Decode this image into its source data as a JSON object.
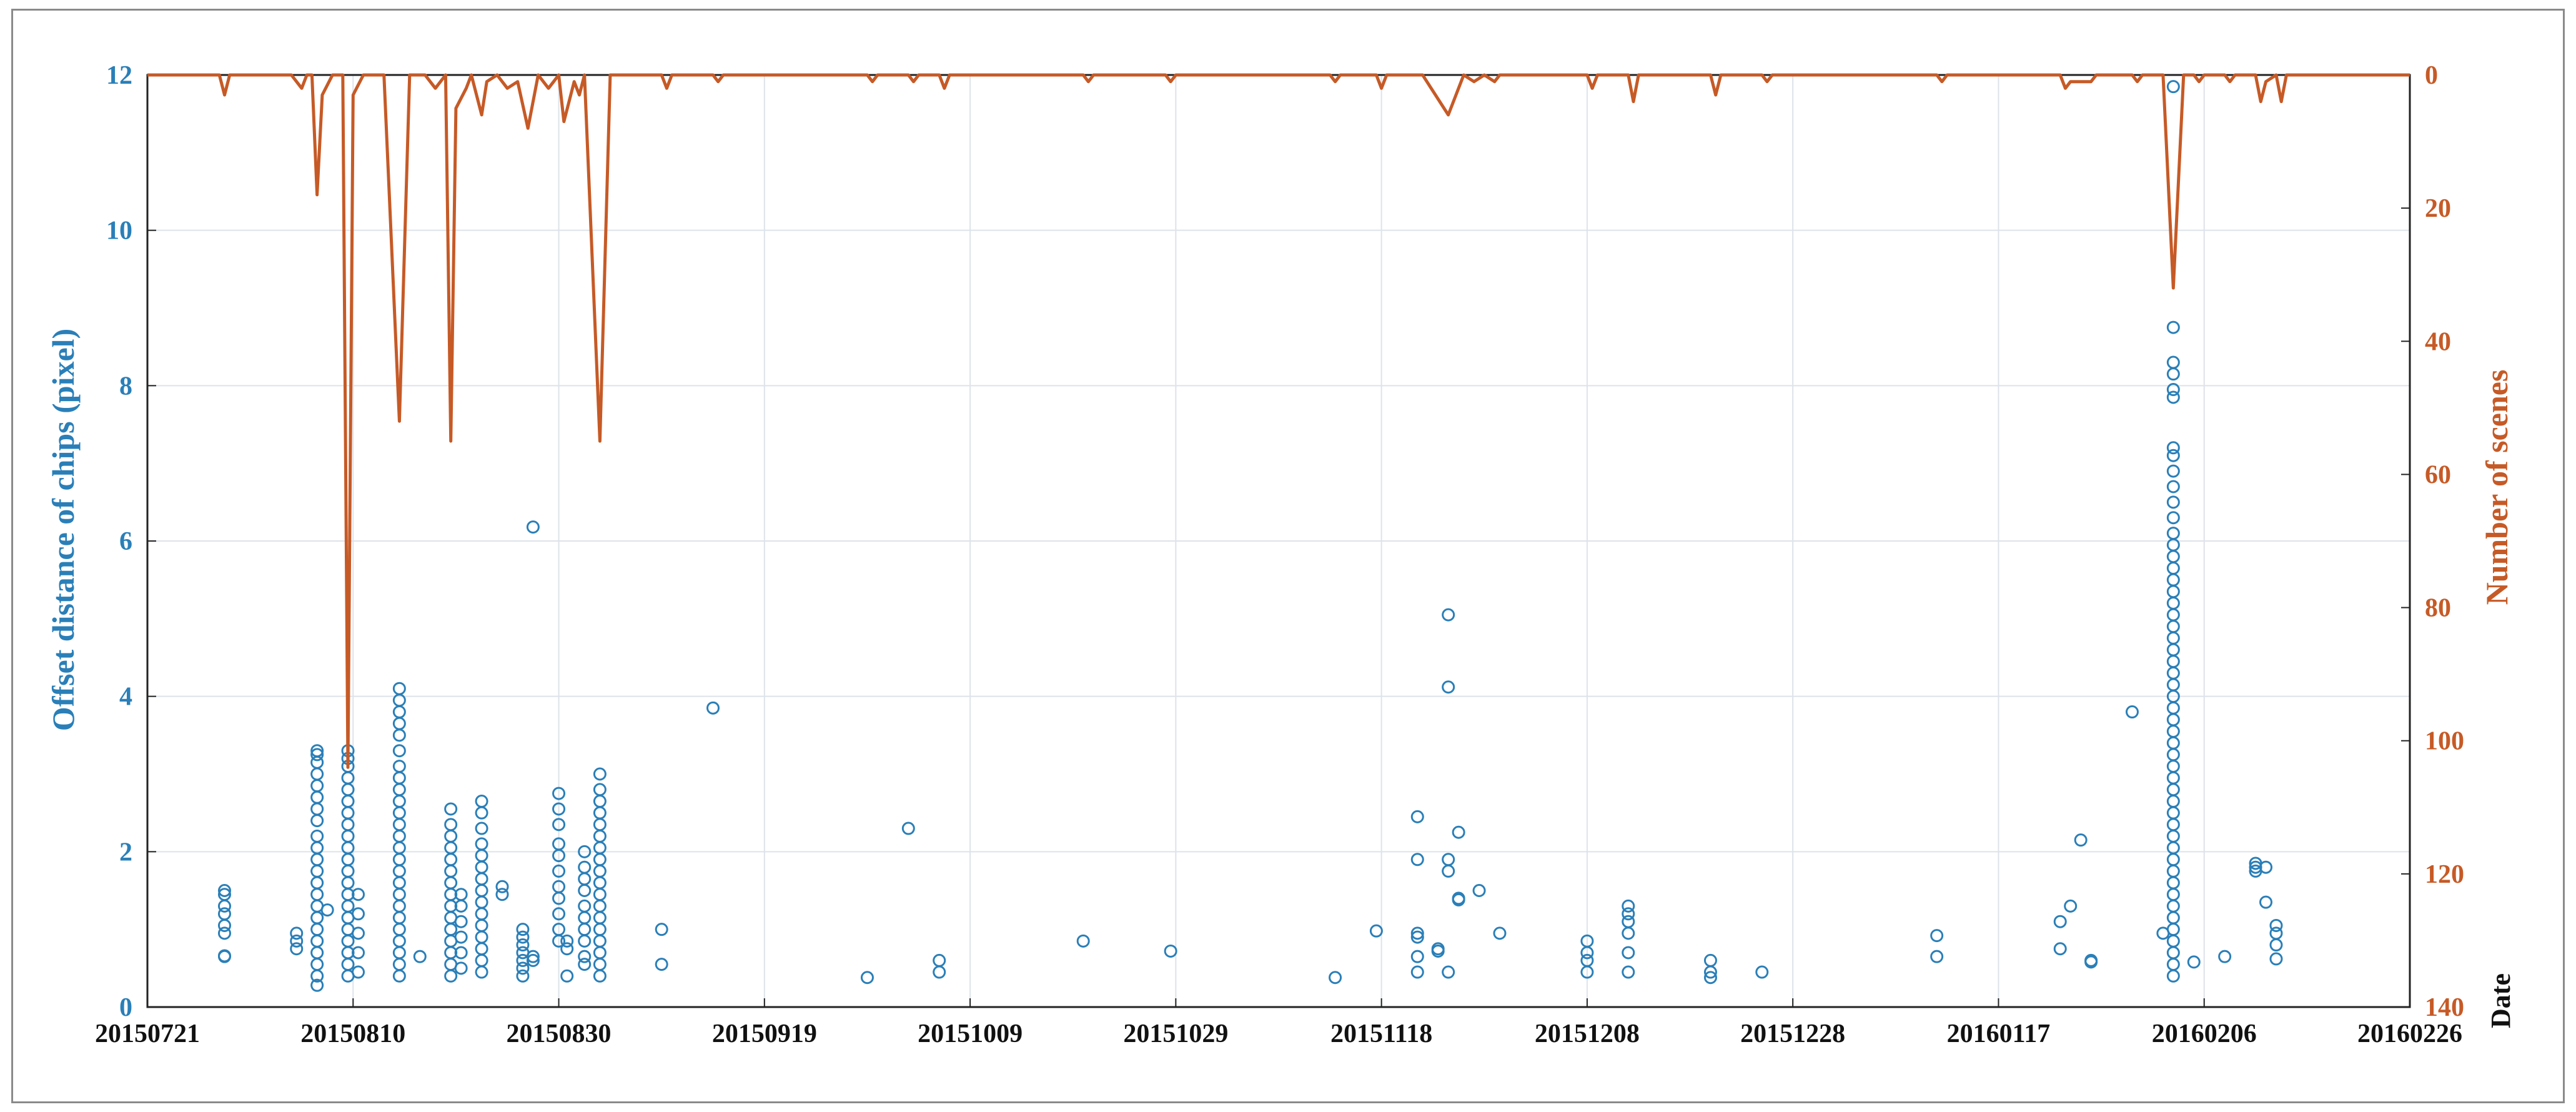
{
  "chart_data": {
    "type": "scatter",
    "title": "",
    "xlabel": "Date",
    "ylabel_left": "Offset distance of chips (pixel)",
    "ylabel_right": "Number of scenes",
    "x_ticks": [
      "20150721",
      "20150810",
      "20150830",
      "20150919",
      "20151009",
      "20151029",
      "20151118",
      "20151208",
      "20151228",
      "20160117",
      "20160206",
      "20160226"
    ],
    "x_range_days": [
      0,
      220
    ],
    "y_left_ticks": [
      "0",
      "2",
      "4",
      "6",
      "8",
      "10",
      "12"
    ],
    "y_left_range": [
      0,
      12
    ],
    "y_right_ticks": [
      "0",
      "20",
      "40",
      "60",
      "80",
      "100",
      "120",
      "140"
    ],
    "y_right_range": [
      0,
      140
    ],
    "y_right_reversed": true,
    "grid": true,
    "colors": {
      "scatter": "#2a7fb8",
      "line": "#c65a26",
      "grid": "#dde3ea",
      "axis": "#222222"
    },
    "series": [
      {
        "name": "Offset distance of chips",
        "kind": "scatter",
        "axis": "left",
        "clusters": [
          {
            "day": 7.5,
            "values": [
              0.65,
              0.66,
              0.95,
              1.05,
              1.2,
              1.3,
              1.45,
              1.5
            ]
          },
          {
            "day": 14.5,
            "values": [
              0.75,
              0.85,
              0.95
            ]
          },
          {
            "day": 16.5,
            "values": [
              0.28,
              0.4,
              0.55,
              0.7,
              0.85,
              1.0,
              1.15,
              1.3,
              1.45,
              1.6,
              1.75,
              1.9,
              2.05,
              2.2,
              2.4,
              2.55,
              2.7,
              2.85,
              3.0,
              3.15,
              3.25,
              3.3
            ]
          },
          {
            "day": 17.5,
            "values": [
              1.25
            ]
          },
          {
            "day": 19.5,
            "values": [
              0.4,
              0.55,
              0.7,
              0.85,
              1.0,
              1.15,
              1.3,
              1.45,
              1.6,
              1.75,
              1.9,
              2.05,
              2.2,
              2.35,
              2.5,
              2.65,
              2.8,
              2.95,
              3.1,
              3.2,
              3.3
            ]
          },
          {
            "day": 20.5,
            "values": [
              0.45,
              0.7,
              0.95,
              1.2,
              1.45
            ]
          },
          {
            "day": 24.5,
            "values": [
              0.4,
              0.55,
              0.7,
              0.85,
              1.0,
              1.15,
              1.3,
              1.45,
              1.6,
              1.75,
              1.9,
              2.05,
              2.2,
              2.35,
              2.5,
              2.65,
              2.8,
              2.95,
              3.1,
              3.3,
              3.5,
              3.65,
              3.8,
              3.95,
              4.1
            ]
          },
          {
            "day": 26.5,
            "values": [
              0.65
            ]
          },
          {
            "day": 29.5,
            "values": [
              0.4,
              0.55,
              0.7,
              0.85,
              1.0,
              1.15,
              1.3,
              1.45,
              1.6,
              1.75,
              1.9,
              2.05,
              2.2,
              2.35,
              2.55
            ]
          },
          {
            "day": 30.5,
            "values": [
              0.5,
              0.7,
              0.9,
              1.1,
              1.3,
              1.45
            ]
          },
          {
            "day": 32.5,
            "values": [
              0.45,
              0.6,
              0.75,
              0.9,
              1.05,
              1.2,
              1.35,
              1.5,
              1.65,
              1.8,
              1.95,
              2.1,
              2.3,
              2.5,
              2.65
            ]
          },
          {
            "day": 34.5,
            "values": [
              1.45,
              1.55
            ]
          },
          {
            "day": 36.5,
            "values": [
              0.4,
              0.5,
              0.6,
              0.7,
              0.8,
              0.9,
              1.0
            ]
          },
          {
            "day": 37.5,
            "values": [
              0.6,
              0.65,
              6.18
            ]
          },
          {
            "day": 40.0,
            "values": [
              0.85,
              1.0,
              1.2,
              1.4,
              1.55,
              1.75,
              1.95,
              2.1,
              2.35,
              2.55,
              2.75
            ]
          },
          {
            "day": 40.8,
            "values": [
              0.4,
              0.75,
              0.85
            ]
          },
          {
            "day": 42.5,
            "values": [
              0.55,
              0.65,
              0.85,
              1.0,
              1.15,
              1.3,
              1.5,
              1.65,
              1.8,
              2.0
            ]
          },
          {
            "day": 44.0,
            "values": [
              0.4,
              0.55,
              0.7,
              0.85,
              1.0,
              1.15,
              1.3,
              1.45,
              1.6,
              1.75,
              1.9,
              2.05,
              2.2,
              2.35,
              2.5,
              2.65,
              2.8,
              3.0
            ]
          },
          {
            "day": 50.0,
            "values": [
              0.55,
              1.0
            ]
          },
          {
            "day": 55.0,
            "values": [
              3.85
            ]
          },
          {
            "day": 70.0,
            "values": [
              0.38
            ]
          },
          {
            "day": 74.0,
            "values": [
              2.3
            ]
          },
          {
            "day": 77.0,
            "values": [
              0.45,
              0.6
            ]
          },
          {
            "day": 91.0,
            "values": [
              0.85
            ]
          },
          {
            "day": 99.5,
            "values": [
              0.72
            ]
          },
          {
            "day": 115.5,
            "values": [
              0.38
            ]
          },
          {
            "day": 119.5,
            "values": [
              0.98
            ]
          },
          {
            "day": 123.5,
            "values": [
              0.45,
              0.65,
              0.9,
              0.95,
              1.9,
              2.45
            ]
          },
          {
            "day": 125.5,
            "values": [
              0.72,
              0.75
            ]
          },
          {
            "day": 126.5,
            "values": [
              0.45,
              1.75,
              1.9,
              4.12,
              5.05
            ]
          },
          {
            "day": 127.5,
            "values": [
              1.38,
              1.4,
              2.25
            ]
          },
          {
            "day": 129.5,
            "values": [
              1.5
            ]
          },
          {
            "day": 131.5,
            "values": [
              0.95
            ]
          },
          {
            "day": 140.0,
            "values": [
              0.45,
              0.6,
              0.7,
              0.85
            ]
          },
          {
            "day": 144.0,
            "values": [
              0.45,
              0.7,
              0.95,
              1.1,
              1.2,
              1.3
            ]
          },
          {
            "day": 152.0,
            "values": [
              0.38,
              0.45,
              0.6
            ]
          },
          {
            "day": 157.0,
            "values": [
              0.45
            ]
          },
          {
            "day": 174.0,
            "values": [
              0.65,
              0.92
            ]
          },
          {
            "day": 186.0,
            "values": [
              0.75,
              1.1
            ]
          },
          {
            "day": 187.0,
            "values": [
              1.3
            ]
          },
          {
            "day": 188.0,
            "values": [
              2.15
            ]
          },
          {
            "day": 189.0,
            "values": [
              0.58,
              0.6
            ]
          },
          {
            "day": 193.0,
            "values": [
              3.8
            ]
          },
          {
            "day": 196.0,
            "values": [
              0.95
            ]
          },
          {
            "day": 197.0,
            "values": [
              0.4,
              0.55,
              0.7,
              0.85,
              1.0,
              1.15,
              1.3,
              1.45,
              1.6,
              1.75,
              1.9,
              2.05,
              2.2,
              2.35,
              2.5,
              2.65,
              2.8,
              2.95,
              3.1,
              3.25,
              3.4,
              3.55,
              3.7,
              3.85,
              4.0,
              4.15,
              4.3,
              4.45,
              4.6,
              4.75,
              4.9,
              5.05,
              5.2,
              5.35,
              5.5,
              5.65,
              5.8,
              5.95,
              6.1,
              6.3,
              6.5,
              6.7,
              6.9,
              7.1,
              7.2,
              7.85,
              7.95,
              8.15,
              8.3,
              8.75,
              11.85
            ]
          },
          {
            "day": 199.0,
            "values": [
              0.58
            ]
          },
          {
            "day": 202.0,
            "values": [
              0.65
            ]
          },
          {
            "day": 205.0,
            "values": [
              1.75,
              1.8,
              1.85
            ]
          },
          {
            "day": 206.0,
            "values": [
              1.35,
              1.8
            ]
          },
          {
            "day": 207.0,
            "values": [
              0.62,
              0.8,
              0.95,
              1.05
            ]
          }
        ]
      },
      {
        "name": "Number of scenes",
        "kind": "line",
        "axis": "right",
        "points": [
          [
            0,
            0
          ],
          [
            7,
            0
          ],
          [
            7.5,
            3
          ],
          [
            8,
            0
          ],
          [
            14,
            0
          ],
          [
            15,
            2
          ],
          [
            15.5,
            0
          ],
          [
            16,
            0
          ],
          [
            16.5,
            18
          ],
          [
            17,
            3
          ],
          [
            18,
            0
          ],
          [
            19,
            0
          ],
          [
            19.5,
            104
          ],
          [
            20,
            3
          ],
          [
            21,
            0
          ],
          [
            23,
            0
          ],
          [
            24.5,
            52
          ],
          [
            25.5,
            0
          ],
          [
            27,
            0
          ],
          [
            28,
            2
          ],
          [
            29,
            0
          ],
          [
            29.5,
            55
          ],
          [
            30,
            5
          ],
          [
            31,
            2
          ],
          [
            31.5,
            0
          ],
          [
            32.5,
            6
          ],
          [
            33,
            1
          ],
          [
            34,
            0
          ],
          [
            35,
            2
          ],
          [
            36,
            1
          ],
          [
            37,
            8
          ],
          [
            38,
            0
          ],
          [
            39,
            2
          ],
          [
            40,
            0
          ],
          [
            40.5,
            7
          ],
          [
            41.5,
            1
          ],
          [
            42,
            3
          ],
          [
            42.5,
            0
          ],
          [
            44,
            55
          ],
          [
            45,
            0
          ],
          [
            50,
            0
          ],
          [
            50.5,
            2
          ],
          [
            51,
            0
          ],
          [
            55,
            0
          ],
          [
            55.5,
            1
          ],
          [
            56,
            0
          ],
          [
            70,
            0
          ],
          [
            70.5,
            1
          ],
          [
            71,
            0
          ],
          [
            74,
            0
          ],
          [
            74.5,
            1
          ],
          [
            75,
            0
          ],
          [
            77,
            0
          ],
          [
            77.5,
            2
          ],
          [
            78,
            0
          ],
          [
            91,
            0
          ],
          [
            91.5,
            1
          ],
          [
            92,
            0
          ],
          [
            99,
            0
          ],
          [
            99.5,
            1
          ],
          [
            100,
            0
          ],
          [
            115,
            0
          ],
          [
            115.5,
            1
          ],
          [
            116,
            0
          ],
          [
            119.5,
            0
          ],
          [
            120,
            2
          ],
          [
            120.5,
            0
          ],
          [
            124,
            0
          ],
          [
            126.5,
            6
          ],
          [
            128,
            0
          ],
          [
            129,
            1
          ],
          [
            130,
            0
          ],
          [
            131,
            1
          ],
          [
            131.5,
            0
          ],
          [
            140,
            0
          ],
          [
            140.5,
            2
          ],
          [
            141,
            0
          ],
          [
            144,
            0
          ],
          [
            144.5,
            4
          ],
          [
            145,
            0
          ],
          [
            152,
            0
          ],
          [
            152.5,
            3
          ],
          [
            153,
            0
          ],
          [
            157,
            0
          ],
          [
            157.5,
            1
          ],
          [
            158,
            0
          ],
          [
            174,
            0
          ],
          [
            174.5,
            1
          ],
          [
            175,
            0
          ],
          [
            186,
            0
          ],
          [
            186.5,
            2
          ],
          [
            187,
            1
          ],
          [
            189,
            1
          ],
          [
            189.5,
            0
          ],
          [
            193,
            0
          ],
          [
            193.5,
            1
          ],
          [
            194,
            0
          ],
          [
            196,
            0
          ],
          [
            197,
            32
          ],
          [
            198,
            0
          ],
          [
            199,
            0
          ],
          [
            199.5,
            1
          ],
          [
            200,
            0
          ],
          [
            202,
            0
          ],
          [
            202.5,
            1
          ],
          [
            203,
            0
          ],
          [
            205,
            0
          ],
          [
            205.5,
            4
          ],
          [
            206,
            1
          ],
          [
            207,
            0
          ],
          [
            207.5,
            4
          ],
          [
            208,
            0
          ],
          [
            220,
            0
          ]
        ]
      }
    ]
  }
}
